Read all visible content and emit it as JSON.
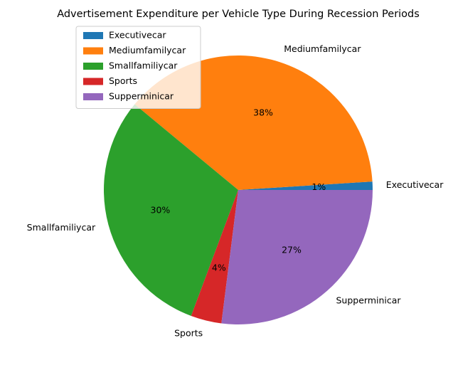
{
  "chart_data": {
    "type": "pie",
    "title": "Advertisement Expenditure per Vehicle Type During Recession Periods",
    "slices": [
      {
        "label": "Executivecar",
        "percent": 1.0,
        "pct_label": "1%",
        "color": "#1f77b4"
      },
      {
        "label": "Mediumfamilycar",
        "percent": 38.0,
        "pct_label": "38%",
        "color": "#ff7f0e"
      },
      {
        "label": "Smallfamiliycar",
        "percent": 30.3,
        "pct_label": "30%",
        "color": "#2ca02c"
      },
      {
        "label": "Sports",
        "percent": 3.7,
        "pct_label": "4%",
        "color": "#d62728"
      },
      {
        "label": "Supperminicar",
        "percent": 27.0,
        "pct_label": "27%",
        "color": "#9467bd"
      }
    ],
    "legend_position": "upper-left",
    "start_angle_deg": 0,
    "direction": "counterclockwise"
  }
}
